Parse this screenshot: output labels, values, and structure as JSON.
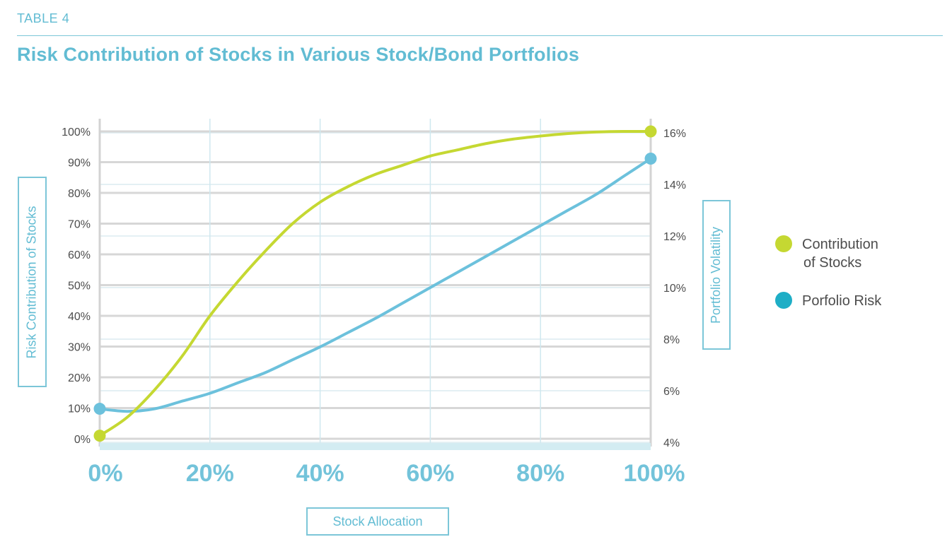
{
  "header": {
    "table_label": "TABLE 4",
    "title": "Risk Contribution of Stocks in Various Stock/Bond Portfolios"
  },
  "colors": {
    "accent": "#62bcd3",
    "contribution": "#c5d832",
    "risk": "#6cc1dc",
    "grid": "#d7d7d7",
    "vgrid": "#cfe8ef"
  },
  "chart_data": {
    "type": "line",
    "title": "Risk Contribution of Stocks in Various Stock/Bond Portfolios",
    "xlabel": "Stock Allocation",
    "ylabel": "Risk Contribution of Stocks",
    "y2label": "Portfolio Volatility",
    "x_ticks": [
      "0%",
      "20%",
      "40%",
      "60%",
      "80%",
      "100%"
    ],
    "y_ticks": [
      "0%",
      "10%",
      "20%",
      "30%",
      "40%",
      "50%",
      "60%",
      "70%",
      "80%",
      "90%",
      "100%"
    ],
    "y2_ticks": [
      "4%",
      "6%",
      "8%",
      "10%",
      "12%",
      "14%",
      "16%"
    ],
    "xlim": [
      0,
      100
    ],
    "ylim": [
      0,
      100
    ],
    "y2lim": [
      4,
      16
    ],
    "grid": true,
    "legend_position": "right",
    "series": [
      {
        "name": "Contribution of Stocks",
        "name_lines": [
          "Contribution",
          "of Stocks"
        ],
        "axis": "left",
        "x": [
          0,
          5,
          10,
          15,
          20,
          25,
          30,
          35,
          40,
          45,
          50,
          55,
          60,
          65,
          70,
          75,
          80,
          85,
          90,
          95,
          100
        ],
        "values": [
          1,
          7,
          16,
          27,
          40,
          51,
          61,
          70,
          77,
          82,
          86,
          89,
          92,
          94,
          96,
          97.5,
          98.5,
          99.3,
          99.8,
          100,
          100
        ]
      },
      {
        "name": "Porfolio Risk",
        "axis": "right",
        "x": [
          0,
          5,
          10,
          15,
          20,
          25,
          30,
          35,
          40,
          45,
          50,
          55,
          60,
          65,
          70,
          75,
          80,
          85,
          90,
          95,
          100
        ],
        "values": [
          5.3,
          5.2,
          5.3,
          5.6,
          5.9,
          6.3,
          6.7,
          7.2,
          7.7,
          8.25,
          8.8,
          9.4,
          10.0,
          10.6,
          11.2,
          11.8,
          12.4,
          13.0,
          13.6,
          14.3,
          15.0
        ]
      }
    ]
  }
}
